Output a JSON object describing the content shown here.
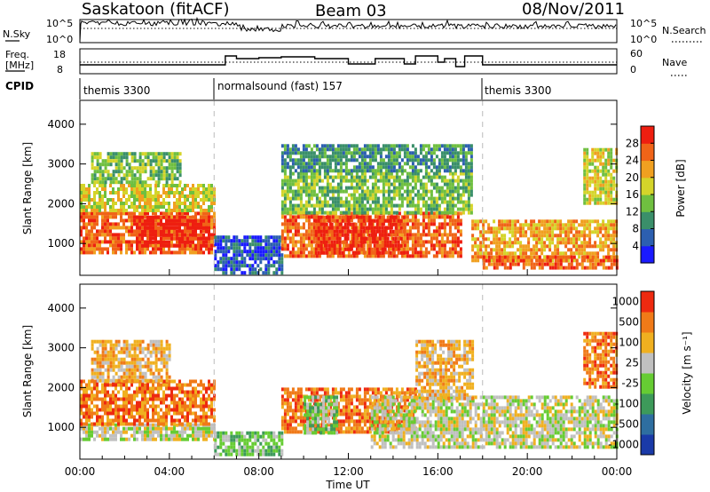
{
  "header": {
    "station": "Saskatoon (fitACF)",
    "beam": "Beam 03",
    "date": "08/Nov/2011"
  },
  "aux_panels": {
    "nsky_label": "N.Sky",
    "nsearch_label": "N.Search",
    "nsky_ticks": [
      "10^5",
      "10^0"
    ],
    "nsearch_ticks": [
      "10^5",
      "10^0"
    ],
    "freq_label_line1": "Freq.",
    "freq_label_line2": "[MHz]",
    "freq_ticks": [
      "18",
      "8"
    ],
    "nave_label": "Nave",
    "nave_ticks": [
      "60",
      "0"
    ],
    "cpid_label": "CPID",
    "cpid_segments": [
      {
        "name": "themis 3300",
        "start_hour": 0
      },
      {
        "name": "normalsound (fast) 157",
        "start_hour": 6
      },
      {
        "name": "themis 3300",
        "start_hour": 18
      }
    ]
  },
  "chart_data": [
    {
      "type": "heatmap",
      "id": "power",
      "ylabel": "Slant Range [km]",
      "ylim": [
        200,
        4600
      ],
      "yticks": [
        "1000",
        "2000",
        "3000",
        "4000"
      ],
      "ytick_values": [
        1000,
        2000,
        3000,
        4000
      ],
      "xlim_hours": [
        0,
        24
      ],
      "colorbar_label": "Power [dB]",
      "colorbar_ticks": [
        "4",
        "8",
        "12",
        "16",
        "20",
        "24",
        "28"
      ],
      "colorbar_colors": [
        "#1a1aff",
        "#2c5fb0",
        "#3a8f6a",
        "#6fbf40",
        "#d4d42a",
        "#f0a020",
        "#f06418",
        "#ee1e10"
      ],
      "bands": [
        {
          "h0": 0.0,
          "h1": 6.0,
          "r0": 800,
          "r1": 1800,
          "level": 6
        },
        {
          "h0": 0.0,
          "h1": 6.0,
          "r0": 1800,
          "r1": 2500,
          "level": 4
        },
        {
          "h0": 0.5,
          "h1": 4.5,
          "r0": 2500,
          "r1": 3300,
          "level": 3
        },
        {
          "h0": 2.5,
          "h1": 5.8,
          "r0": 900,
          "r1": 1700,
          "level": 7
        },
        {
          "h0": 6.0,
          "h1": 9.0,
          "r0": 300,
          "r1": 1200,
          "level": 1
        },
        {
          "h0": 9.0,
          "h1": 17.0,
          "r0": 700,
          "r1": 1800,
          "level": 6
        },
        {
          "h0": 10.5,
          "h1": 14.5,
          "r0": 800,
          "r1": 1700,
          "level": 7
        },
        {
          "h0": 9.0,
          "h1": 17.5,
          "r0": 1800,
          "r1": 2800,
          "level": 3
        },
        {
          "h0": 9.0,
          "h1": 17.5,
          "r0": 2800,
          "r1": 3500,
          "level": 2
        },
        {
          "h0": 17.5,
          "h1": 24.0,
          "r0": 600,
          "r1": 1600,
          "level": 5
        },
        {
          "h0": 18.0,
          "h1": 24.0,
          "r0": 400,
          "r1": 700,
          "level": 6
        },
        {
          "h0": 22.5,
          "h1": 24.0,
          "r0": 2000,
          "r1": 3400,
          "level": 4
        }
      ]
    },
    {
      "type": "heatmap",
      "id": "velocity",
      "ylabel": "Slant Range [km]",
      "ylim": [
        200,
        4600
      ],
      "yticks": [
        "1000",
        "2000",
        "3000",
        "4000"
      ],
      "ytick_values": [
        1000,
        2000,
        3000,
        4000
      ],
      "xlim_hours": [
        0,
        24
      ],
      "xlabel": "Time UT",
      "xticks": [
        "00:00",
        "04:00",
        "08:00",
        "12:00",
        "16:00",
        "20:00",
        "00:00"
      ],
      "xtick_hours": [
        0,
        4,
        8,
        12,
        16,
        20,
        24
      ],
      "colorbar_label": "Velocity [m s⁻¹]",
      "colorbar_ticks": [
        "1000",
        "500",
        "100",
        "25",
        "-25",
        "-100",
        "-500",
        "-1000"
      ],
      "colorbar_colors": [
        "#1a3aa8",
        "#2e6ea0",
        "#3d9a5a",
        "#66cc33",
        "#c0c0c0",
        "#f0b020",
        "#f07a18",
        "#ee2a10"
      ],
      "bands": [
        {
          "h0": 0.0,
          "h1": 6.0,
          "r0": 700,
          "r1": 1100,
          "level": 4
        },
        {
          "h0": 0.0,
          "h1": 6.0,
          "r0": 1100,
          "r1": 2200,
          "level": 6
        },
        {
          "h0": 0.5,
          "h1": 4.0,
          "r0": 2200,
          "r1": 3200,
          "level": 5
        },
        {
          "h0": 6.0,
          "h1": 9.0,
          "r0": 300,
          "r1": 900,
          "level": 3
        },
        {
          "h0": 9.0,
          "h1": 15.0,
          "r0": 900,
          "r1": 2000,
          "level": 6
        },
        {
          "h0": 10.0,
          "h1": 11.5,
          "r0": 900,
          "r1": 1800,
          "level": 3
        },
        {
          "h0": 13.0,
          "h1": 24.0,
          "r0": 500,
          "r1": 1800,
          "level": 4
        },
        {
          "h0": 15.0,
          "h1": 17.5,
          "r0": 1700,
          "r1": 3200,
          "level": 5
        },
        {
          "h0": 22.5,
          "h1": 24.0,
          "r0": 2000,
          "r1": 3400,
          "level": 6
        }
      ]
    }
  ]
}
